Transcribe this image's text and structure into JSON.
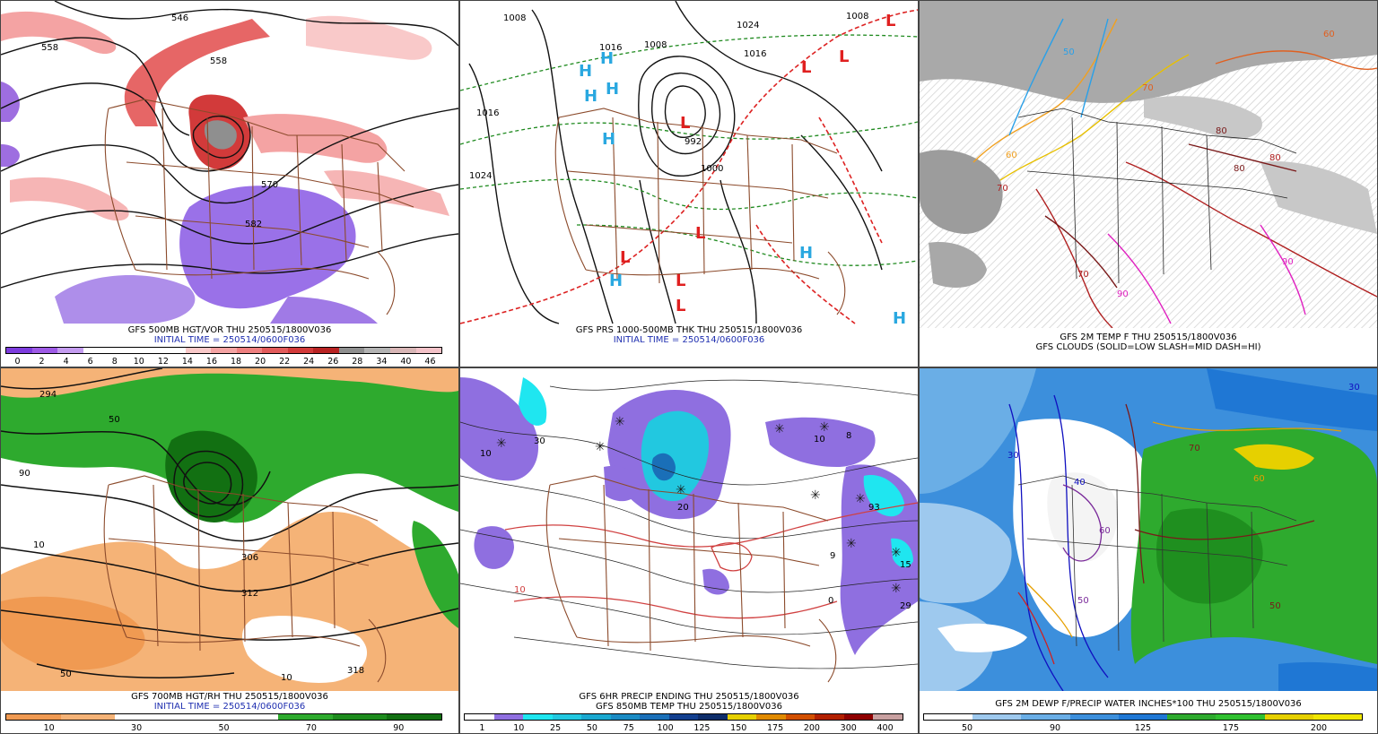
{
  "panels": [
    {
      "title": "GFS 500MB HGT/VOR THU 250515/1800V036",
      "subtitle": "INITIAL TIME = 250514/0600F036",
      "colorbar": {
        "colors": [
          "#7d3cde",
          "#9e5ae6",
          "#c49cf0",
          "#ffffff",
          "#ffffff",
          "#ffffff",
          "#ffffff",
          "#f9c9c9",
          "#f4a3a3",
          "#ee7f7f",
          "#e25b5b",
          "#d23a3a",
          "#b82323",
          "#8f8f8f",
          "#b3b3b3",
          "#d8b6b6",
          "#f3c2c8"
        ],
        "labels": [
          "0",
          "2",
          "4",
          "6",
          "8",
          "10",
          "12",
          "14",
          "16",
          "18",
          "20",
          "22",
          "24",
          "26",
          "28",
          "34",
          "40",
          "46"
        ]
      },
      "contour_labels": [
        "546",
        "558",
        "558",
        "570",
        "582"
      ]
    },
    {
      "title": "GFS PRS 1000-500MB THK THU 250515/1800V036",
      "subtitle": "INITIAL TIME = 250514/0600F036",
      "contour_labels": [
        "1008",
        "1024",
        "1016",
        "1016",
        "1008",
        "1008",
        "1016",
        "1024",
        "992",
        "1000"
      ],
      "highs": [
        "H",
        "H",
        "H",
        "H",
        "H",
        "H",
        "H",
        "H"
      ],
      "lows": [
        "L",
        "L",
        "L",
        "L",
        "L",
        "L",
        "L",
        "L",
        "L"
      ]
    },
    {
      "title": "GFS 2M TEMP F THU 250515/1800V036",
      "subtitle": "GFS CLOUDS (SOLID=LOW SLASH=MID DASH=HI)",
      "contour_labels": [
        "60",
        "70",
        "80",
        "90",
        "70",
        "80",
        "90",
        "50",
        "60",
        "70",
        "80"
      ]
    },
    {
      "title": "GFS 700MB HGT/RH THU 250515/1800V036",
      "subtitle": "INITIAL TIME = 250514/0600F036",
      "colorbar": {
        "colors": [
          "#f09a52",
          "#f5b377",
          "#ffffff",
          "#ffffff",
          "#ffffff",
          "#2eaa2e",
          "#1e8c1e",
          "#127012"
        ],
        "labels": [
          "10",
          "30",
          "50",
          "70",
          "90"
        ]
      },
      "contour_labels": [
        "294",
        "306",
        "312",
        "318",
        "10",
        "50",
        "90",
        "50",
        "10"
      ]
    },
    {
      "title": "GFS 6HR PRECIP ENDING THU 250515/1800V036",
      "subtitle": "GFS 850MB TEMP THU 250515/1800V036",
      "colorbar": {
        "colors": [
          "#ffffff",
          "#8f6fe0",
          "#1fe6f0",
          "#22c8e0",
          "#1aa8d0",
          "#1b8bc4",
          "#1a6fb8",
          "#123f8f",
          "#0e2d6a",
          "#e6d000",
          "#e08a00",
          "#d25000",
          "#b22000",
          "#8f0000",
          "#c8a0a0"
        ],
        "labels": [
          "1",
          "10",
          "25",
          "50",
          "75",
          "100",
          "125",
          "150",
          "175",
          "200",
          "300",
          "400"
        ]
      },
      "contour_labels": [
        "30",
        "10",
        "20",
        "93",
        "15",
        "29",
        "8",
        "0",
        "9",
        "10",
        "10"
      ]
    },
    {
      "title": "GFS 2M DEWP F/PRECIP WATER INCHES*100 THU 250515/1800V036",
      "colorbar": {
        "colors": [
          "#ffffff",
          "#9ec9ee",
          "#6aaee6",
          "#3c8fdc",
          "#1f77d4",
          "#2eaa2e",
          "#30c030",
          "#e6d000",
          "#f0e600"
        ],
        "labels": [
          "50",
          "90",
          "125",
          "175",
          "200"
        ]
      },
      "contour_labels": [
        "30",
        "40",
        "50",
        "60",
        "70",
        "30",
        "50",
        "60"
      ]
    }
  ]
}
